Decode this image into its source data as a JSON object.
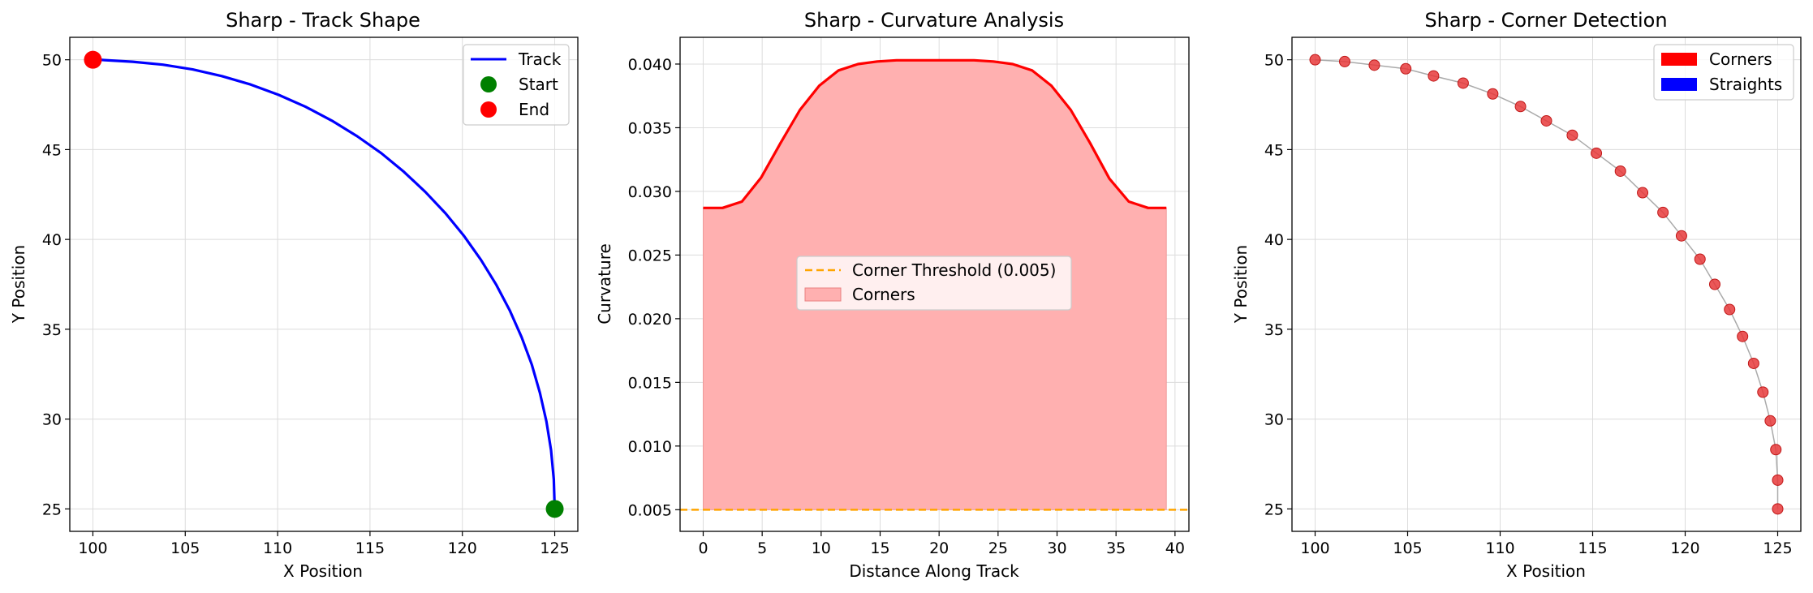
{
  "chart_data": [
    {
      "type": "line",
      "title": "Sharp - Track Shape",
      "xlabel": "X Position",
      "ylabel": "Y Position",
      "xlim": [
        98.75,
        126.25
      ],
      "ylim": [
        23.75,
        51.25
      ],
      "xticks": [
        "100",
        "105",
        "110",
        "115",
        "120",
        "125"
      ],
      "yticks": [
        "25",
        "30",
        "35",
        "40",
        "45",
        "50"
      ],
      "grid": true,
      "legend_position": "top-right",
      "colors": {
        "track": "#0000ff",
        "start": "#008000",
        "end": "#ff0000"
      },
      "series": [
        {
          "name": "Track",
          "x": [
            125.0,
            124.95,
            124.8,
            124.55,
            124.2,
            123.76,
            123.21,
            122.57,
            121.84,
            121.01,
            120.09,
            119.09,
            118.0,
            116.84,
            115.61,
            114.31,
            112.94,
            111.52,
            110.05,
            108.54,
            106.98,
            105.4,
            103.78,
            102.15,
            100.5,
            100.0
          ],
          "y": [
            25.0,
            26.64,
            28.27,
            29.87,
            31.46,
            33.03,
            34.55,
            36.04,
            37.47,
            38.86,
            40.19,
            41.45,
            42.64,
            43.76,
            44.8,
            45.74,
            46.61,
            47.38,
            48.05,
            48.62,
            49.09,
            49.46,
            49.73,
            49.89,
            49.99,
            50.0
          ]
        }
      ],
      "start": {
        "name": "Start",
        "x": 125,
        "y": 25
      },
      "end": {
        "name": "End",
        "x": 100,
        "y": 50
      }
    },
    {
      "type": "area",
      "title": "Sharp - Curvature Analysis",
      "xlabel": "Distance Along Track",
      "ylabel": "Curvature",
      "xlim": [
        -1.96,
        41.18
      ],
      "ylim": [
        0.0033,
        0.0421
      ],
      "xticks": [
        "0",
        "5",
        "10",
        "15",
        "20",
        "25",
        "30",
        "35",
        "40"
      ],
      "yticks": [
        "0.005",
        "0.010",
        "0.015",
        "0.020",
        "0.025",
        "0.030",
        "0.035",
        "0.040"
      ],
      "grid": true,
      "legend_position": "center",
      "colors": {
        "curve": "#ff0000",
        "fill": "#ffb0b0",
        "threshold": "#ffa500"
      },
      "x": [
        0.0,
        1.64,
        3.28,
        4.92,
        6.56,
        8.2,
        9.84,
        11.48,
        13.12,
        14.76,
        16.4,
        18.04,
        19.68,
        21.32,
        22.96,
        24.6,
        26.24,
        27.88,
        29.52,
        31.16,
        32.8,
        34.44,
        36.08,
        37.72,
        39.27
      ],
      "curvature": [
        0.0287,
        0.0287,
        0.0292,
        0.0311,
        0.0338,
        0.0364,
        0.0383,
        0.0395,
        0.04,
        0.0402,
        0.0403,
        0.0403,
        0.0403,
        0.0403,
        0.0403,
        0.0402,
        0.04,
        0.0395,
        0.0383,
        0.0364,
        0.0338,
        0.031,
        0.0292,
        0.0287,
        0.0287
      ],
      "threshold": {
        "name": "Corner Threshold (0.005)",
        "value": 0.005
      },
      "fill_name": "Corners"
    },
    {
      "type": "scatter",
      "title": "Sharp - Corner Detection",
      "xlabel": "X Position",
      "ylabel": "Y Position",
      "xlim": [
        98.75,
        126.25
      ],
      "ylim": [
        23.75,
        51.25
      ],
      "xticks": [
        "100",
        "105",
        "110",
        "115",
        "120",
        "125"
      ],
      "yticks": [
        "25",
        "30",
        "35",
        "40",
        "45",
        "50"
      ],
      "grid": true,
      "legend_position": "top-right",
      "colors": {
        "corners": "#ff0000",
        "straights": "#0000ff",
        "path": "#aaaaaa",
        "point": "#e8393b"
      },
      "legend": [
        "Corners",
        "Straights"
      ],
      "points": {
        "x": [
          100.0,
          101.6,
          103.2,
          104.9,
          106.4,
          108.0,
          109.6,
          111.1,
          112.5,
          113.9,
          115.2,
          116.5,
          117.7,
          118.8,
          119.8,
          120.8,
          121.6,
          122.4,
          123.1,
          123.7,
          124.2,
          124.6,
          124.9,
          125.0,
          125.0
        ],
        "y": [
          50.0,
          49.9,
          49.7,
          49.5,
          49.1,
          48.7,
          48.1,
          47.4,
          46.6,
          45.8,
          44.8,
          43.8,
          42.6,
          41.5,
          40.2,
          38.9,
          37.5,
          36.1,
          34.6,
          33.1,
          31.5,
          29.9,
          28.3,
          26.6,
          25.0
        ]
      }
    }
  ]
}
